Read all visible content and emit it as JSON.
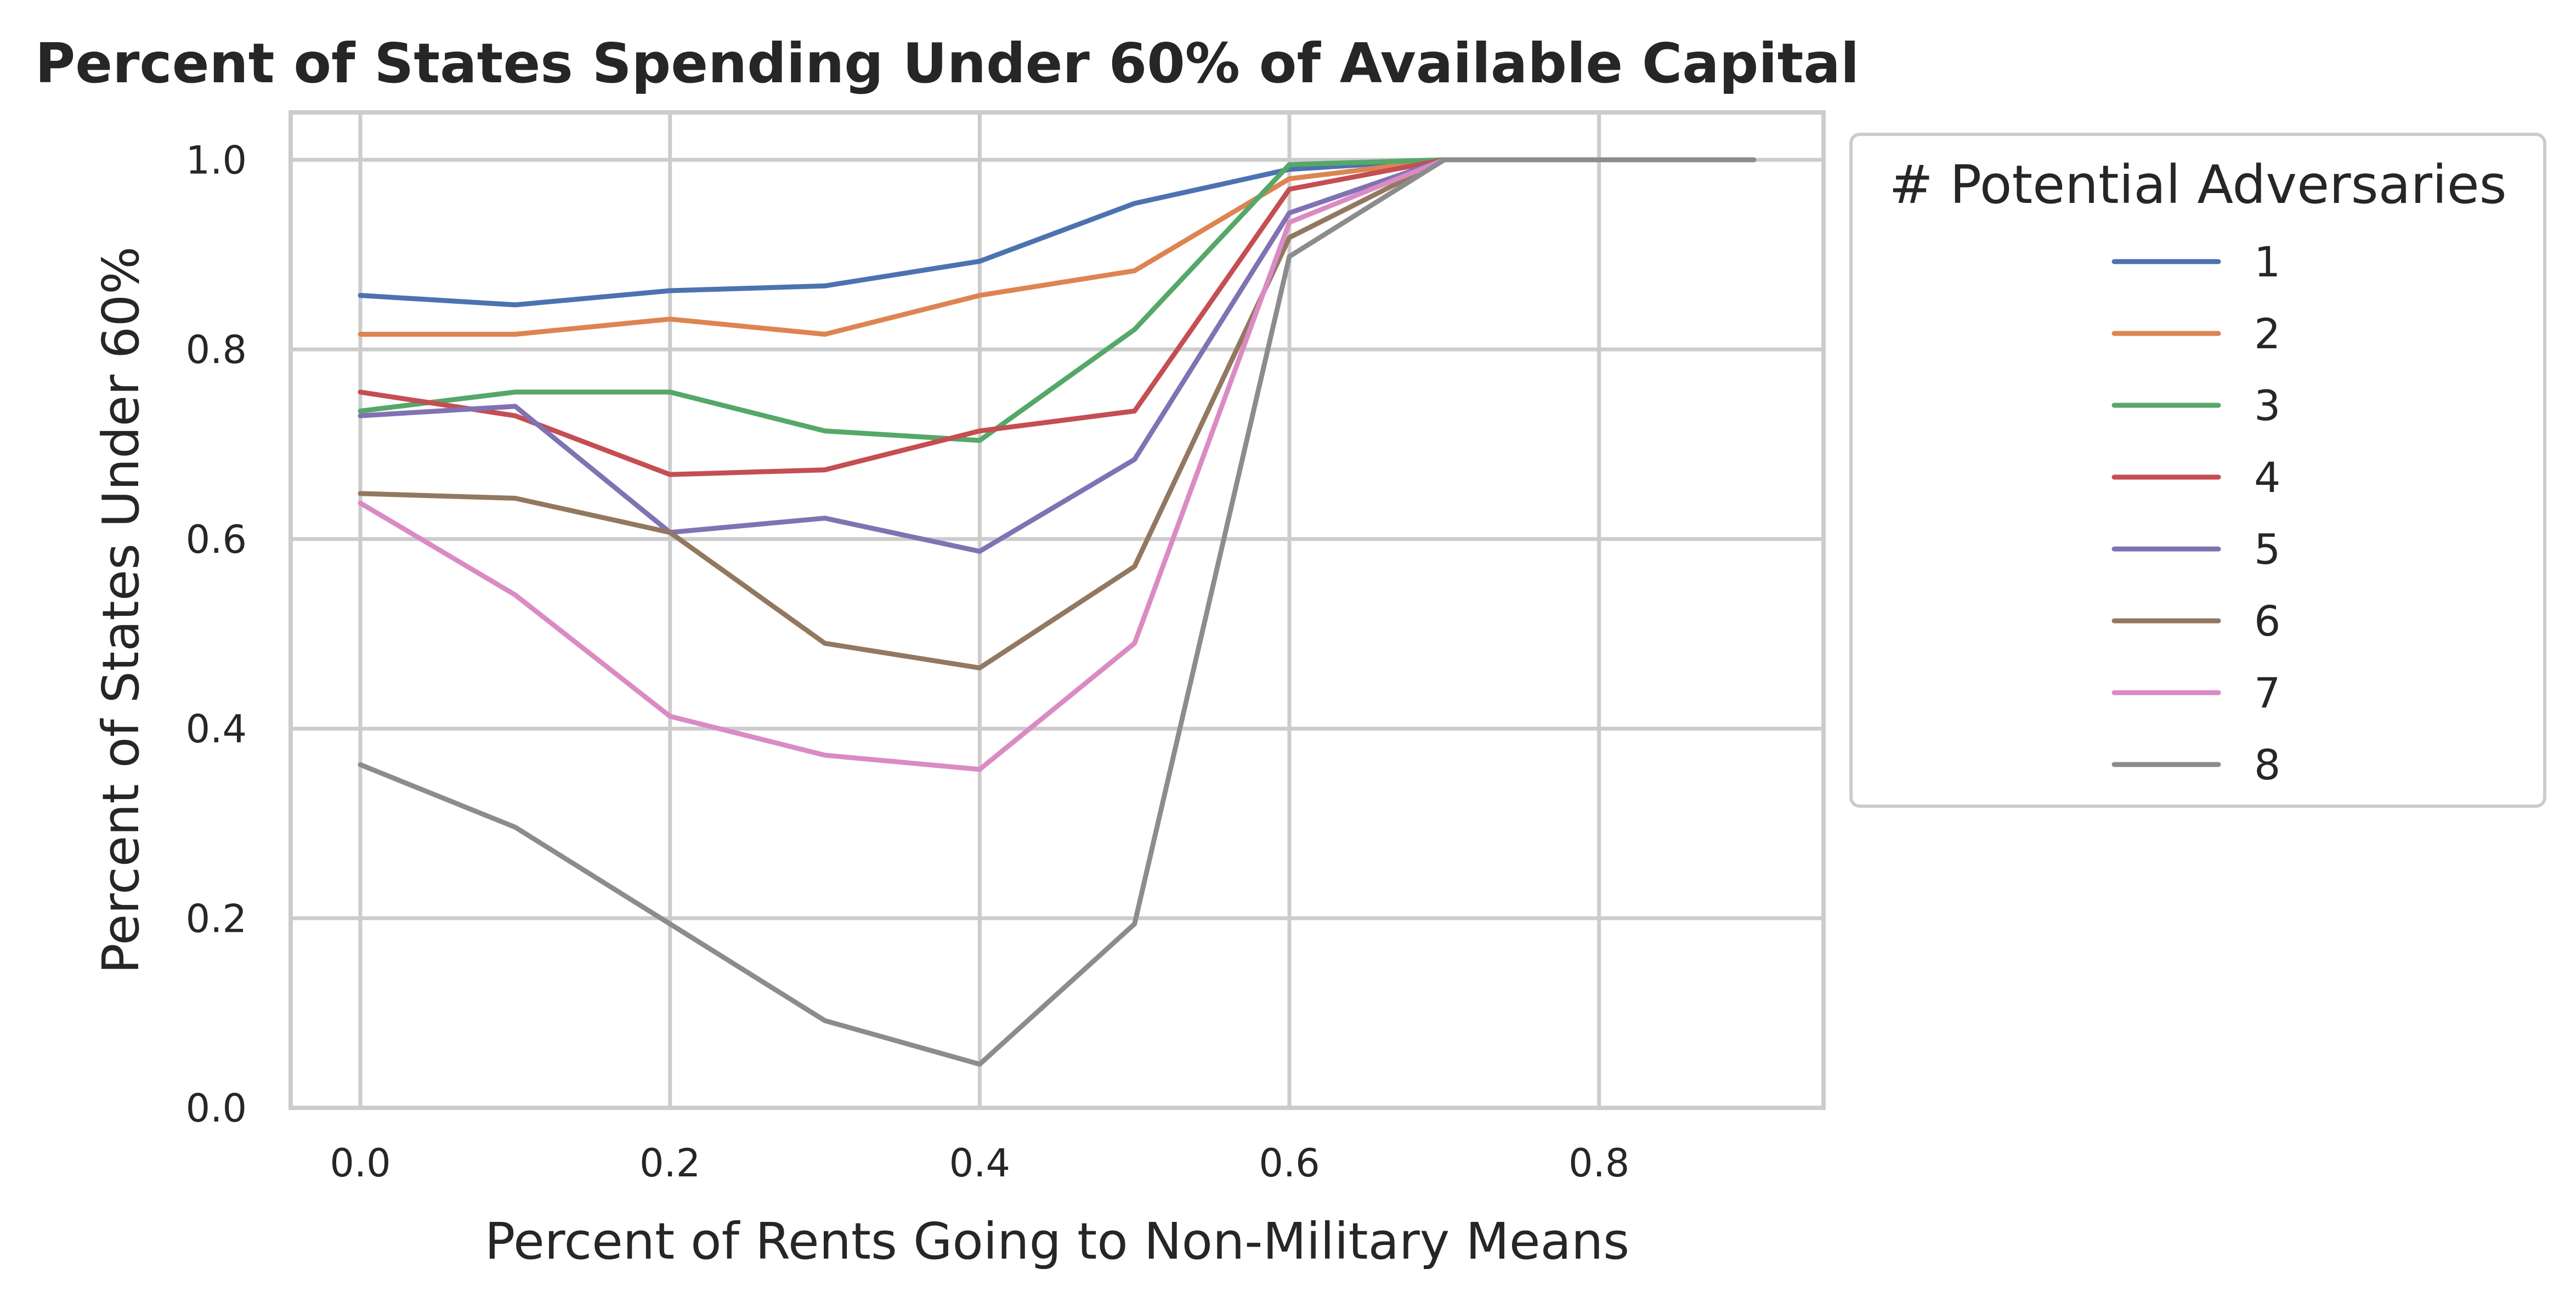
{
  "chart_data": {
    "type": "line",
    "title": "Percent of States Spending Under 60% of Available Capital",
    "xlabel": "Percent of Rents Going to Non-Military Means",
    "ylabel": "Percent of States Under 60%",
    "xlim": [
      -0.045,
      0.945
    ],
    "ylim": [
      0.0,
      1.05
    ],
    "x_ticks": [
      "0.0",
      "0.2",
      "0.4",
      "0.6",
      "0.8"
    ],
    "y_ticks": [
      "0.0",
      "0.2",
      "0.4",
      "0.6",
      "0.8",
      "1.0"
    ],
    "grid": true,
    "legend": {
      "title": "# Potential Adversaries",
      "placement": "outside-right"
    },
    "x": [
      0.0,
      0.1,
      0.2,
      0.3,
      0.4,
      0.5,
      0.6,
      0.7,
      0.8,
      0.9
    ],
    "series": [
      {
        "name": "1",
        "color": "#4c72b0",
        "values": [
          0.857,
          0.847,
          0.862,
          0.867,
          0.893,
          0.954,
          0.99,
          1.0,
          null,
          null
        ]
      },
      {
        "name": "2",
        "color": "#dd8452",
        "values": [
          0.816,
          0.816,
          0.832,
          0.816,
          0.857,
          0.883,
          0.98,
          1.0,
          null,
          null
        ]
      },
      {
        "name": "3",
        "color": "#55a868",
        "values": [
          0.735,
          0.755,
          0.755,
          0.714,
          0.704,
          0.821,
          0.995,
          1.0,
          null,
          null
        ]
      },
      {
        "name": "4",
        "color": "#c44e52",
        "values": [
          0.755,
          0.73,
          0.668,
          0.673,
          0.714,
          0.735,
          0.969,
          1.0,
          null,
          null
        ]
      },
      {
        "name": "5",
        "color": "#8172b3",
        "values": [
          0.73,
          0.74,
          0.607,
          0.622,
          0.587,
          0.684,
          0.944,
          1.0,
          null,
          null
        ]
      },
      {
        "name": "6",
        "color": "#937860",
        "values": [
          0.648,
          0.643,
          0.607,
          0.49,
          0.464,
          0.571,
          0.918,
          1.0,
          null,
          null
        ]
      },
      {
        "name": "7",
        "color": "#da8bc3",
        "values": [
          0.638,
          0.541,
          0.413,
          0.372,
          0.357,
          0.49,
          0.934,
          1.0,
          null,
          null
        ]
      },
      {
        "name": "8",
        "color": "#8c8c8c",
        "values": [
          0.362,
          0.296,
          0.194,
          0.092,
          0.046,
          0.194,
          0.898,
          1.0,
          1.0,
          1.0
        ]
      }
    ]
  }
}
